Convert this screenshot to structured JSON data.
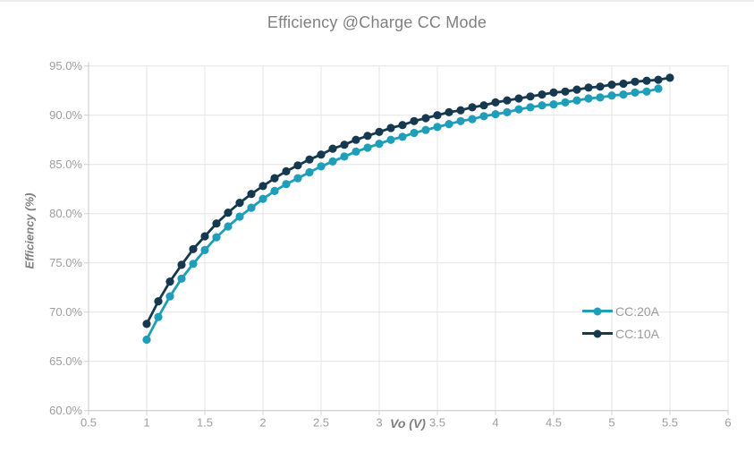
{
  "title": "Efficiency @Charge CC Mode",
  "palette": {
    "grid": "#e4e4e4",
    "axis": "#c9c9c9",
    "tick": "#d0d0d0",
    "title_text": "#808080",
    "tick_text": "#9e9e9e",
    "axis_title_text": "#7f7f7f",
    "legend_text": "#9b9b9b"
  },
  "chart_data": {
    "type": "line",
    "title": "Efficiency @Charge CC Mode",
    "xlabel": "Vo (V)",
    "ylabel": "Efficiency (%)",
    "xlim": [
      0.5,
      6
    ],
    "ylim": [
      60,
      95
    ],
    "grid": true,
    "legend_position": "inside-right",
    "x_tick_values": [
      0.5,
      1,
      1.5,
      2,
      2.5,
      3,
      3.5,
      4,
      4.5,
      5,
      5.5,
      6
    ],
    "x_tick_labels": [
      "0.5",
      "1",
      "1.5",
      "2",
      "2.5",
      "3",
      "3.5",
      "4",
      "4.5",
      "5",
      "5.5",
      "6"
    ],
    "y_tick_values": [
      95,
      90,
      85,
      80,
      75,
      70,
      65,
      60
    ],
    "y_tick_labels": [
      "95.0%",
      "90.0%",
      "85.0%",
      "80.0%",
      "75.0%",
      "70.0%",
      "65.0%",
      "60.0%"
    ],
    "series": [
      {
        "name": "CC:20A",
        "color": "#1e9eb8",
        "x": [
          1.0,
          1.1,
          1.2,
          1.3,
          1.4,
          1.5,
          1.6,
          1.7,
          1.8,
          1.9,
          2.0,
          2.1,
          2.2,
          2.3,
          2.4,
          2.5,
          2.6,
          2.7,
          2.8,
          2.9,
          3.0,
          3.1,
          3.2,
          3.3,
          3.4,
          3.5,
          3.6,
          3.7,
          3.8,
          3.9,
          4.0,
          4.1,
          4.2,
          4.3,
          4.4,
          4.5,
          4.6,
          4.7,
          4.8,
          4.9,
          5.0,
          5.1,
          5.2,
          5.3,
          5.4
        ],
        "values": [
          67.2,
          69.5,
          71.6,
          73.4,
          74.9,
          76.3,
          77.6,
          78.7,
          79.7,
          80.6,
          81.5,
          82.3,
          83.0,
          83.6,
          84.2,
          84.8,
          85.3,
          85.8,
          86.3,
          86.7,
          87.1,
          87.5,
          87.8,
          88.2,
          88.5,
          88.8,
          89.1,
          89.4,
          89.6,
          89.9,
          90.1,
          90.3,
          90.6,
          90.8,
          91.0,
          91.1,
          91.3,
          91.5,
          91.7,
          91.8,
          92.0,
          92.1,
          92.3,
          92.4,
          92.7
        ]
      },
      {
        "name": "CC:10A",
        "color": "#16394f",
        "x": [
          1.0,
          1.1,
          1.2,
          1.3,
          1.4,
          1.5,
          1.6,
          1.7,
          1.8,
          1.9,
          2.0,
          2.1,
          2.2,
          2.3,
          2.4,
          2.5,
          2.6,
          2.7,
          2.8,
          2.9,
          3.0,
          3.1,
          3.2,
          3.3,
          3.4,
          3.5,
          3.6,
          3.7,
          3.8,
          3.9,
          4.0,
          4.1,
          4.2,
          4.3,
          4.4,
          4.5,
          4.6,
          4.7,
          4.8,
          4.9,
          5.0,
          5.1,
          5.2,
          5.3,
          5.4,
          5.5
        ],
        "values": [
          68.8,
          71.1,
          73.1,
          74.8,
          76.4,
          77.7,
          79.0,
          80.1,
          81.1,
          82.0,
          82.8,
          83.6,
          84.3,
          84.9,
          85.5,
          86.0,
          86.6,
          87.0,
          87.5,
          87.9,
          88.3,
          88.7,
          89.0,
          89.4,
          89.7,
          90.0,
          90.3,
          90.5,
          90.8,
          91.0,
          91.3,
          91.5,
          91.7,
          91.9,
          92.1,
          92.3,
          92.4,
          92.6,
          92.8,
          92.9,
          93.1,
          93.2,
          93.4,
          93.5,
          93.6,
          93.8
        ]
      }
    ]
  }
}
